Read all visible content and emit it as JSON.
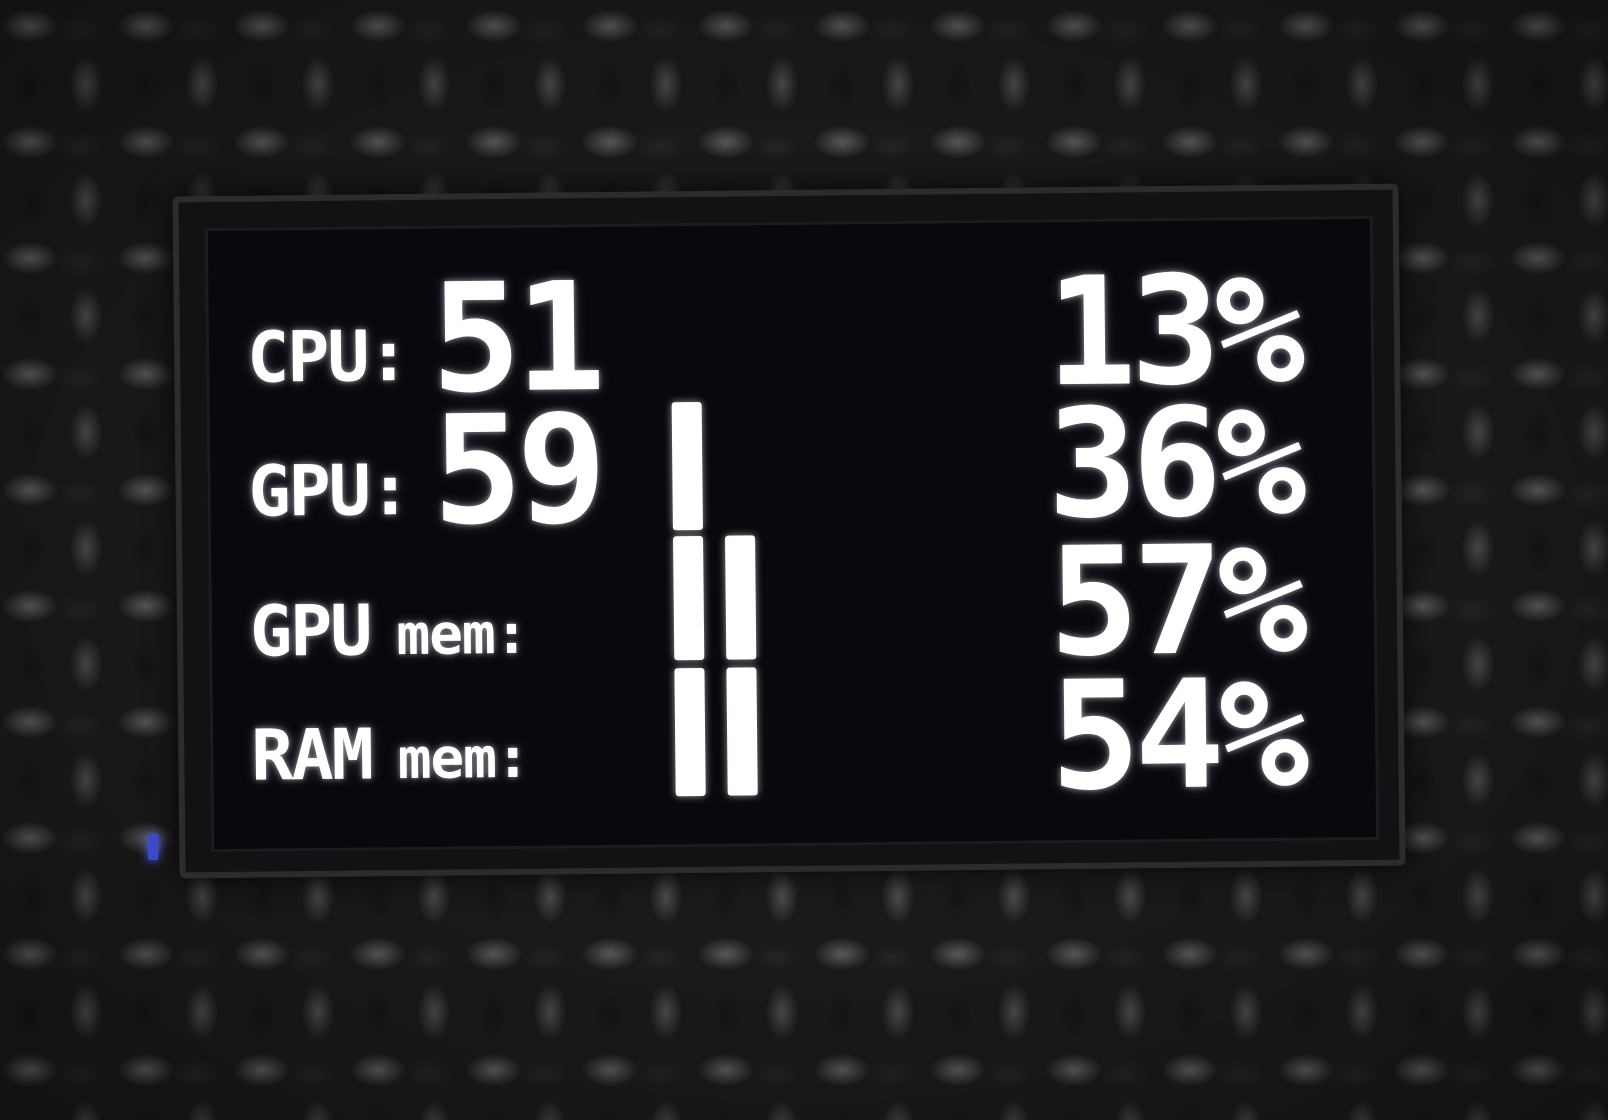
{
  "display": {
    "rows": [
      {
        "label": "CPU:",
        "temp": "51",
        "percent": "13%",
        "fraction": 0.13
      },
      {
        "label": "GPU:",
        "temp": "59",
        "percent": "36%",
        "fraction": 0.36
      },
      {
        "label": "GPU",
        "sublabel": "mem:",
        "percent": "57%",
        "fraction": 0.57
      },
      {
        "label": "RAM",
        "sublabel": "mem:",
        "percent": "54%",
        "fraction": 0.54
      }
    ]
  },
  "colors": {
    "text": "#ffffff",
    "screen": "#0a070d",
    "led": "#3a4ac8"
  }
}
